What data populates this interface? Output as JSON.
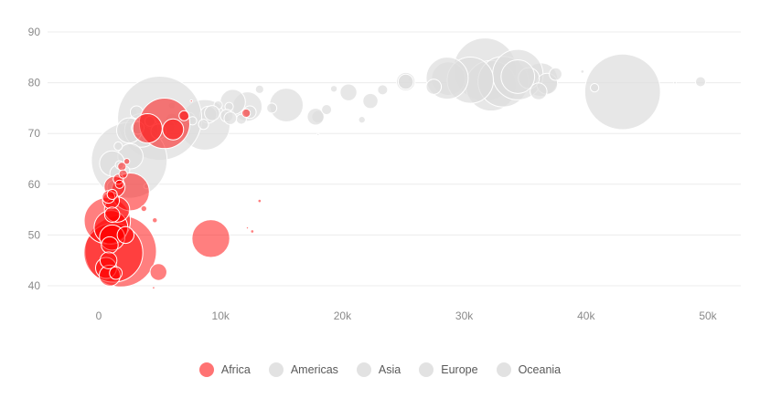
{
  "chart_data": {
    "type": "scatter",
    "subtype": "bubble",
    "title": "",
    "xlabel": "",
    "ylabel": "",
    "xlim": [
      -5000,
      52000
    ],
    "ylim": [
      36,
      92
    ],
    "x_ticks": [
      0,
      10000,
      20000,
      30000,
      40000,
      50000
    ],
    "x_tick_labels": [
      "0",
      "10k",
      "20k",
      "30k",
      "40k",
      "50k"
    ],
    "y_ticks": [
      40,
      50,
      60,
      70,
      80,
      90
    ],
    "y_tick_labels": [
      "40",
      "50",
      "60",
      "70",
      "80",
      "90"
    ],
    "grid": {
      "horizontal": true,
      "vertical": false
    },
    "legend_position": "bottom-center",
    "highlighted_series": "Africa",
    "colors": {
      "Africa": "#ff0000",
      "Americas": "#e0e0e0",
      "Asia": "#e0e0e0",
      "Europe": "#e0e0e0",
      "Oceania": "#e0e0e0",
      "highlight_fill": "#ff0000",
      "muted_fill": "#dddddd"
    },
    "series": [
      {
        "name": "Africa",
        "points": [
          {
            "x": 1200,
            "y": 46.5,
            "size": 7.0
          },
          {
            "x": 1800,
            "y": 46.8,
            "size": 8.5
          },
          {
            "x": 700,
            "y": 52.8,
            "size": 5.5
          },
          {
            "x": 1000,
            "y": 51.5,
            "size": 4.0
          },
          {
            "x": 1100,
            "y": 49.5,
            "size": 3.0
          },
          {
            "x": 900,
            "y": 48.0,
            "size": 2.0
          },
          {
            "x": 800,
            "y": 45.0,
            "size": 2.0
          },
          {
            "x": 600,
            "y": 43.5,
            "size": 2.5
          },
          {
            "x": 900,
            "y": 42.0,
            "size": 2.5
          },
          {
            "x": 1400,
            "y": 42.5,
            "size": 1.5
          },
          {
            "x": 2600,
            "y": 58.5,
            "size": 4.5
          },
          {
            "x": 1000,
            "y": 56.8,
            "size": 2.0
          },
          {
            "x": 1300,
            "y": 59.5,
            "size": 2.5
          },
          {
            "x": 1100,
            "y": 58.0,
            "size": 1.2
          },
          {
            "x": 1600,
            "y": 61.0,
            "size": 1.2
          },
          {
            "x": 1900,
            "y": 63.5,
            "size": 1.0
          },
          {
            "x": 1500,
            "y": 55.0,
            "size": 3.0
          },
          {
            "x": 2200,
            "y": 50.0,
            "size": 2.0
          },
          {
            "x": 3700,
            "y": 55.2,
            "size": 0.7
          },
          {
            "x": 4900,
            "y": 42.7,
            "size": 2.0
          },
          {
            "x": 4600,
            "y": 52.9,
            "size": 0.6
          },
          {
            "x": 9200,
            "y": 49.3,
            "size": 4.5
          },
          {
            "x": 13200,
            "y": 56.7,
            "size": 0.4
          },
          {
            "x": 12600,
            "y": 50.7,
            "size": 0.4
          },
          {
            "x": 12200,
            "y": 51.4,
            "size": 0.2
          },
          {
            "x": 4500,
            "y": 39.6,
            "size": 0.3
          },
          {
            "x": 5400,
            "y": 72.0,
            "size": 6.0
          },
          {
            "x": 4000,
            "y": 71.0,
            "size": 3.5
          },
          {
            "x": 6100,
            "y": 70.8,
            "size": 2.5
          },
          {
            "x": 7000,
            "y": 73.5,
            "size": 1.2
          },
          {
            "x": 7600,
            "y": 76.4,
            "size": 0.2
          },
          {
            "x": 12100,
            "y": 74.0,
            "size": 1.0
          },
          {
            "x": 2000,
            "y": 62.0,
            "size": 1.0
          },
          {
            "x": 2300,
            "y": 64.5,
            "size": 0.7
          },
          {
            "x": 1700,
            "y": 60.0,
            "size": 1.0
          },
          {
            "x": 1100,
            "y": 54.0,
            "size": 1.8
          },
          {
            "x": 800,
            "y": 57.5,
            "size": 1.5
          }
        ]
      },
      {
        "name": "Americas",
        "points": [
          {
            "x": 43000,
            "y": 78.2,
            "size": 9.0
          },
          {
            "x": 8700,
            "y": 71.7,
            "size": 6.0
          },
          {
            "x": 11000,
            "y": 76.2,
            "size": 3.0
          },
          {
            "x": 12200,
            "y": 75.3,
            "size": 3.5
          },
          {
            "x": 7400,
            "y": 72.9,
            "size": 1.5
          },
          {
            "x": 6000,
            "y": 72.7,
            "size": 1.5
          },
          {
            "x": 9000,
            "y": 73.7,
            "size": 2.0
          },
          {
            "x": 36300,
            "y": 80.6,
            "size": 4.0
          },
          {
            "x": 18000,
            "y": 73.3,
            "size": 1.5
          },
          {
            "x": 3800,
            "y": 70.2,
            "size": 1.2
          },
          {
            "x": 5700,
            "y": 71.4,
            "size": 1.5
          },
          {
            "x": 19300,
            "y": 78.8,
            "size": 0.8
          },
          {
            "x": 7000,
            "y": 72.8,
            "size": 1.0
          },
          {
            "x": 1200,
            "y": 60.9,
            "size": 1.0
          },
          {
            "x": 13200,
            "y": 78.7,
            "size": 1.0
          },
          {
            "x": 6000,
            "y": 75.5,
            "size": 0.8
          },
          {
            "x": 10700,
            "y": 75.3,
            "size": 1.0
          },
          {
            "x": 2800,
            "y": 74.2,
            "size": 1.0
          },
          {
            "x": 3500,
            "y": 72.2,
            "size": 0.8
          },
          {
            "x": 9800,
            "y": 75.6,
            "size": 1.0
          }
        ]
      },
      {
        "name": "Asia",
        "points": [
          {
            "x": 5000,
            "y": 73.0,
            "size": 10.0
          },
          {
            "x": 2500,
            "y": 64.7,
            "size": 9.0
          },
          {
            "x": 31700,
            "y": 82.6,
            "size": 7.5
          },
          {
            "x": 3500,
            "y": 70.6,
            "size": 4.0
          },
          {
            "x": 2600,
            "y": 65.5,
            "size": 3.0
          },
          {
            "x": 1100,
            "y": 64.1,
            "size": 3.0
          },
          {
            "x": 2500,
            "y": 70.6,
            "size": 3.0
          },
          {
            "x": 1600,
            "y": 62.1,
            "size": 2.0
          },
          {
            "x": 1200,
            "y": 59.5,
            "size": 1.5
          },
          {
            "x": 3200,
            "y": 71.1,
            "size": 1.5
          },
          {
            "x": 4900,
            "y": 70.4,
            "size": 1.8
          },
          {
            "x": 3100,
            "y": 74.2,
            "size": 1.5
          },
          {
            "x": 23300,
            "y": 78.6,
            "size": 1.2
          },
          {
            "x": 25500,
            "y": 80.7,
            "size": 0.4
          },
          {
            "x": 47300,
            "y": 80.0,
            "size": 0.3
          },
          {
            "x": 39700,
            "y": 82.2,
            "size": 0.4
          },
          {
            "x": 21600,
            "y": 72.7,
            "size": 0.8
          },
          {
            "x": 12400,
            "y": 74.2,
            "size": 1.5
          },
          {
            "x": 4200,
            "y": 72.4,
            "size": 1.2
          },
          {
            "x": 3900,
            "y": 59.6,
            "size": 0.6
          },
          {
            "x": 1700,
            "y": 63.8,
            "size": 1.0
          },
          {
            "x": 22300,
            "y": 76.4,
            "size": 1.8
          },
          {
            "x": 28700,
            "y": 80.8,
            "size": 4.0
          },
          {
            "x": 10500,
            "y": 73.5,
            "size": 1.5
          },
          {
            "x": 18000,
            "y": 69.8,
            "size": 0.2
          },
          {
            "x": 8600,
            "y": 71.8,
            "size": 1.2
          },
          {
            "x": 11700,
            "y": 72.8,
            "size": 1.2
          },
          {
            "x": 2200,
            "y": 62.7,
            "size": 1.0
          },
          {
            "x": 1600,
            "y": 67.5,
            "size": 1.0
          }
        ]
      },
      {
        "name": "Europe",
        "points": [
          {
            "x": 30500,
            "y": 80.5,
            "size": 5.5
          },
          {
            "x": 32200,
            "y": 79.4,
            "size": 6.0
          },
          {
            "x": 33200,
            "y": 80.2,
            "size": 6.0
          },
          {
            "x": 34400,
            "y": 81.6,
            "size": 6.0
          },
          {
            "x": 28600,
            "y": 80.9,
            "size": 5.0
          },
          {
            "x": 36800,
            "y": 79.8,
            "size": 2.5
          },
          {
            "x": 15400,
            "y": 75.6,
            "size": 4.0
          },
          {
            "x": 27500,
            "y": 79.2,
            "size": 1.8
          },
          {
            "x": 35300,
            "y": 80.9,
            "size": 2.5
          },
          {
            "x": 40700,
            "y": 79.0,
            "size": 1.0
          },
          {
            "x": 49400,
            "y": 80.2,
            "size": 1.2
          },
          {
            "x": 37500,
            "y": 81.7,
            "size": 1.5
          },
          {
            "x": 20500,
            "y": 78.1,
            "size": 2.0
          },
          {
            "x": 25200,
            "y": 80.2,
            "size": 2.2
          },
          {
            "x": 17800,
            "y": 73.3,
            "size": 2.0
          },
          {
            "x": 14200,
            "y": 75.0,
            "size": 1.2
          },
          {
            "x": 9300,
            "y": 74.0,
            "size": 1.8
          },
          {
            "x": 7700,
            "y": 72.5,
            "size": 1.0
          },
          {
            "x": 36100,
            "y": 78.3,
            "size": 2.0
          },
          {
            "x": 18700,
            "y": 74.7,
            "size": 1.2
          },
          {
            "x": 10800,
            "y": 73.0,
            "size": 1.5
          }
        ]
      },
      {
        "name": "Oceania",
        "points": [
          {
            "x": 34400,
            "y": 81.2,
            "size": 4.0
          },
          {
            "x": 25200,
            "y": 80.2,
            "size": 1.8
          }
        ]
      }
    ]
  },
  "legend": {
    "items": [
      {
        "label": "Africa",
        "color": "#ff7373"
      },
      {
        "label": "Americas",
        "color": "#e2e2e2"
      },
      {
        "label": "Asia",
        "color": "#e2e2e2"
      },
      {
        "label": "Europe",
        "color": "#e2e2e2"
      },
      {
        "label": "Oceania",
        "color": "#e2e2e2"
      }
    ]
  }
}
